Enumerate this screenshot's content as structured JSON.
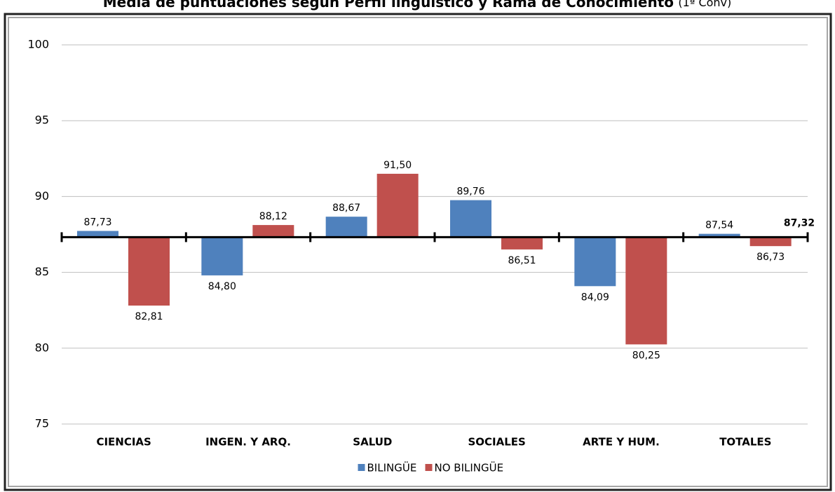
{
  "chart_data": {
    "type": "bar",
    "title": "Media de puntuaciones según Perfil lingüístico y Rama de Conocimiento",
    "subtitle": "(1ª Conv)",
    "categories": [
      "CIENCIAS",
      "INGEN. Y ARQ.",
      "SALUD",
      "SOCIALES",
      "ARTE Y HUM.",
      "TOTALES"
    ],
    "series": [
      {
        "name": "BILINGÜE",
        "color": "#4f81bd",
        "values": [
          87.73,
          84.8,
          88.67,
          89.76,
          84.09,
          87.54
        ],
        "value_labels": [
          "87,73",
          "84,80",
          "88,67",
          "89,76",
          "84,09",
          "87,54"
        ]
      },
      {
        "name": "NO BILINGÜE",
        "color": "#c0504d",
        "values": [
          82.81,
          88.12,
          91.5,
          86.51,
          80.25,
          86.73
        ],
        "value_labels": [
          "82,81",
          "88,12",
          "91,50",
          "86,51",
          "80,25",
          "86,73"
        ]
      }
    ],
    "baseline": 87.32,
    "baseline_label": "87,32",
    "ylim": [
      75,
      100
    ],
    "yticks": [
      75,
      80,
      85,
      90,
      95,
      100
    ],
    "grid": true,
    "legend": "bottom"
  }
}
